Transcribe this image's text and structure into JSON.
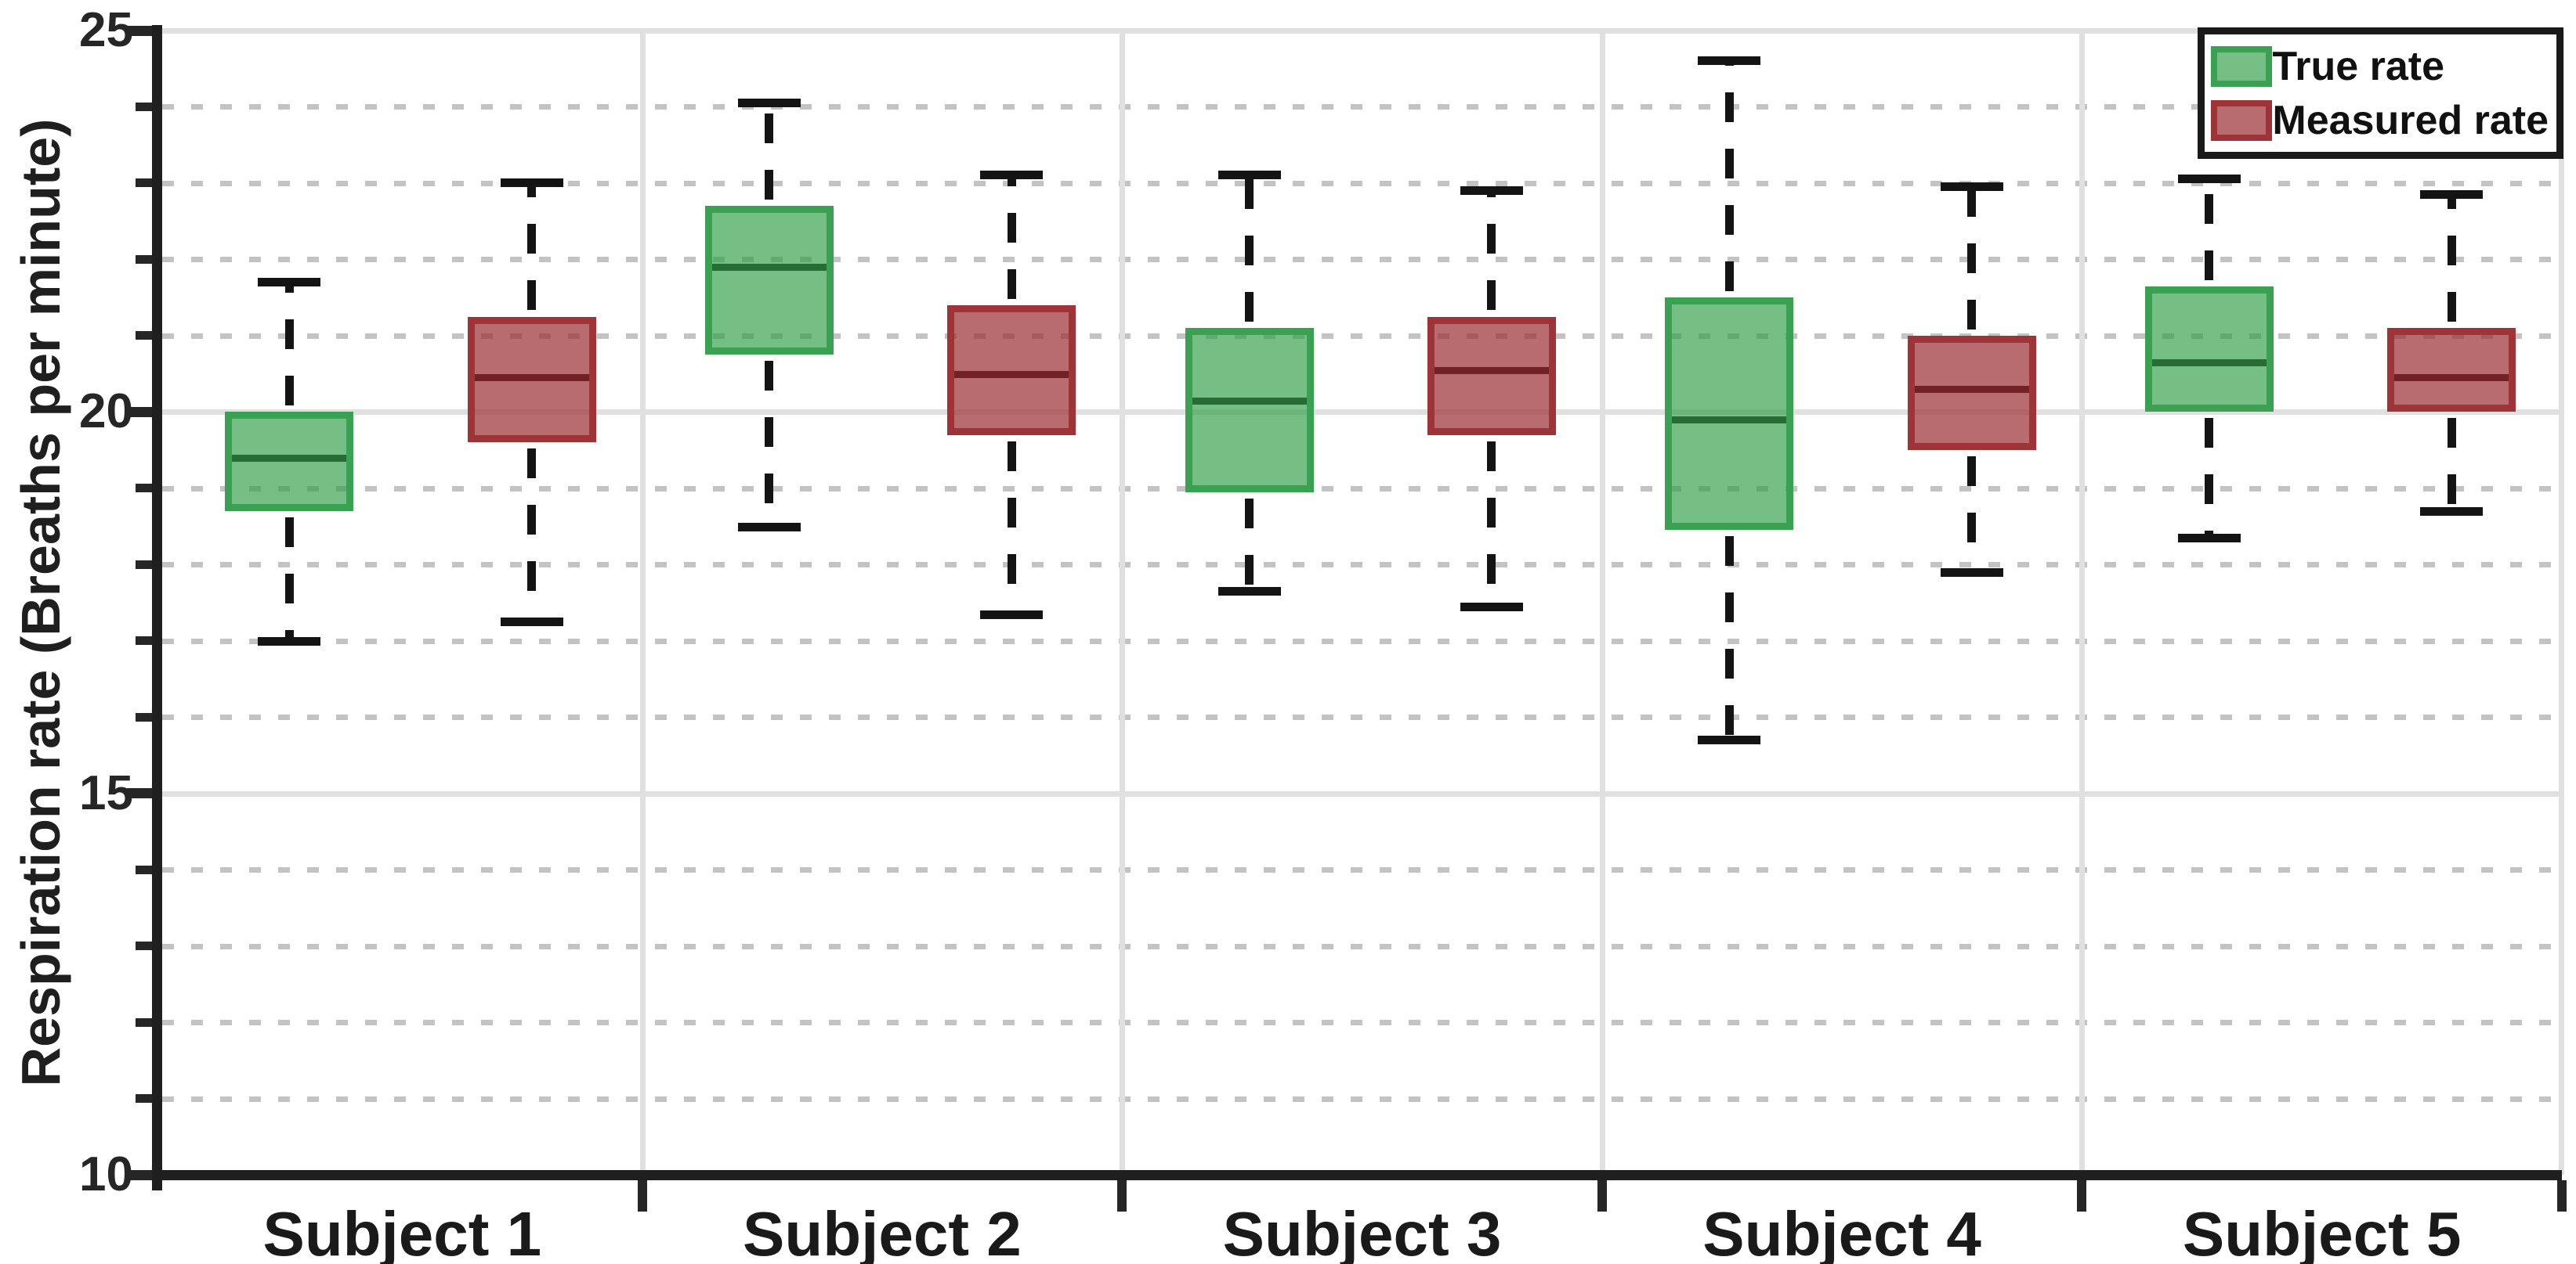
{
  "chart_data": {
    "type": "grouped_boxplot",
    "title": "",
    "xlabel": "",
    "ylabel": "Respiration rate (Breaths per minute)",
    "ylim": [
      10,
      25
    ],
    "yticks_major": [
      10,
      15,
      20,
      25
    ],
    "ytick_minor_step": 1,
    "grid": {
      "major_style": "solid",
      "minor_style": "dotted",
      "vertical_at_category_boundaries": true
    },
    "categories": [
      "Subject 1",
      "Subject 2",
      "Subject 3",
      "Subject 4",
      "Subject 5"
    ],
    "legend": {
      "position": "top-right",
      "entries": [
        "True rate",
        "Measured rate"
      ]
    },
    "series": [
      {
        "name": "True rate",
        "color_border": "#3aa052",
        "color_fill_rgba": "rgba(47,158,68,0.66)",
        "color_median": "#276b35",
        "boxes": [
          {
            "whisker_low": 17.0,
            "q1": 18.7,
            "median": 19.4,
            "q3": 20.0,
            "whisker_high": 21.7
          },
          {
            "whisker_low": 18.5,
            "q1": 20.75,
            "median": 21.9,
            "q3": 22.7,
            "whisker_high": 24.05
          },
          {
            "whisker_low": 17.65,
            "q1": 18.95,
            "median": 20.15,
            "q3": 21.1,
            "whisker_high": 23.1
          },
          {
            "whisker_low": 15.7,
            "q1": 18.45,
            "median": 19.9,
            "q3": 21.5,
            "whisker_high": 24.6
          },
          {
            "whisker_low": 18.35,
            "q1": 20.0,
            "median": 20.65,
            "q3": 21.65,
            "whisker_high": 23.05
          }
        ]
      },
      {
        "name": "Measured rate",
        "color_border": "#9e3338",
        "color_fill_rgba": "rgba(158,51,56,0.72)",
        "color_median": "#702226",
        "boxes": [
          {
            "whisker_low": 17.25,
            "q1": 19.6,
            "median": 20.45,
            "q3": 21.25,
            "whisker_high": 23.0
          },
          {
            "whisker_low": 17.35,
            "q1": 19.7,
            "median": 20.5,
            "q3": 21.4,
            "whisker_high": 23.1
          },
          {
            "whisker_low": 17.45,
            "q1": 19.7,
            "median": 20.55,
            "q3": 21.25,
            "whisker_high": 22.9
          },
          {
            "whisker_low": 17.9,
            "q1": 19.5,
            "median": 20.3,
            "q3": 21.0,
            "whisker_high": 22.95
          },
          {
            "whisker_low": 18.7,
            "q1": 20.0,
            "median": 20.45,
            "q3": 21.1,
            "whisker_high": 22.85
          }
        ]
      }
    ],
    "colors": {
      "background": "#ffffff",
      "axis": "#262626",
      "grid_major": "#e0e0e0",
      "grid_minor": "#c3c3c3",
      "whisker": "#141414",
      "tick_label": "#262626",
      "category_label": "#1a1a1a",
      "legend_border": "#1a1a1a"
    }
  }
}
